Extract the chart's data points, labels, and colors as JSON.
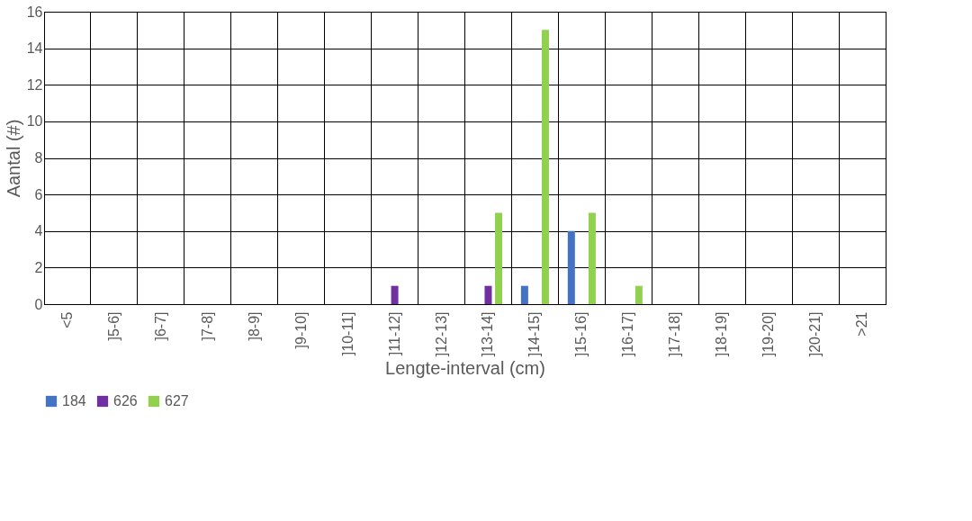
{
  "chart_data": {
    "type": "bar",
    "xlabel": "Lengte-interval (cm)",
    "ylabel": "Aantal (#)",
    "categories": [
      "<5",
      "]5-6]",
      "]6-7]",
      "]7-8]",
      "]8-9]",
      "]9-10]",
      "]10-11]",
      "]11-12]",
      "]12-13]",
      "]13-14]",
      "]14-15]",
      "]15-16]",
      "]16-17]",
      "]17-18]",
      "]18-19]",
      "]19-20]",
      "]20-21]",
      ">21"
    ],
    "series": [
      {
        "name": "184",
        "color": "#4472c4",
        "values": [
          0,
          0,
          0,
          0,
          0,
          0,
          0,
          0,
          0,
          0,
          1,
          4,
          0,
          0,
          0,
          0,
          0,
          0
        ]
      },
      {
        "name": "626",
        "color": "#7030a0",
        "values": [
          0,
          0,
          0,
          0,
          0,
          0,
          0,
          1,
          0,
          1,
          0,
          0,
          0,
          0,
          0,
          0,
          0,
          0
        ]
      },
      {
        "name": "627",
        "color": "#92d050",
        "values": [
          0,
          0,
          0,
          0,
          0,
          0,
          0,
          0,
          0,
          5,
          15,
          5,
          1,
          0,
          0,
          0,
          0,
          0
        ]
      }
    ],
    "ylim": [
      0,
      16
    ],
    "yticks": [
      0,
      2,
      4,
      6,
      8,
      10,
      12,
      14,
      16
    ],
    "grid": true,
    "legend": "bottom left"
  }
}
